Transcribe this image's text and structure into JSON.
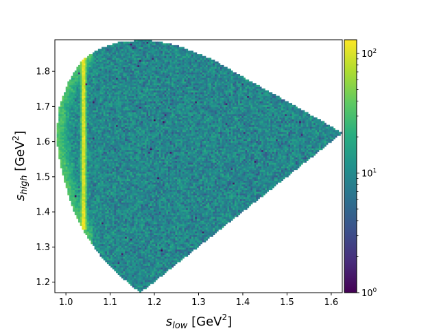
{
  "chart_data": {
    "type": "heatmap",
    "title": "",
    "xlabel": {
      "main": "s",
      "sub": "low",
      "unit_prefix": " [GeV",
      "unit_sup": "2",
      "unit_suffix": "]"
    },
    "ylabel": {
      "main": "s",
      "sub": "high",
      "unit_prefix": " [GeV",
      "unit_sup": "2",
      "unit_suffix": "]"
    },
    "xlim": [
      0.975,
      1.625
    ],
    "ylim": [
      1.17,
      1.89
    ],
    "xticks": [
      1.0,
      1.1,
      1.2,
      1.3,
      1.4,
      1.5,
      1.6
    ],
    "xtick_labels": [
      "1.0",
      "1.1",
      "1.2",
      "1.3",
      "1.4",
      "1.5",
      "1.6"
    ],
    "yticks": [
      1.2,
      1.3,
      1.4,
      1.5,
      1.6,
      1.7,
      1.8
    ],
    "ytick_labels": [
      "1.2",
      "1.3",
      "1.4",
      "1.5",
      "1.6",
      "1.7",
      "1.8"
    ],
    "colormap": "viridis",
    "color_scale": "log",
    "color_range": [
      1,
      130
    ],
    "colorbar_ticks": [
      {
        "value": 1,
        "base": "10",
        "exp": "0"
      },
      {
        "value": 10,
        "base": "10",
        "exp": "1"
      },
      {
        "value": 100,
        "base": "10",
        "exp": "2"
      }
    ],
    "domain_boundary": {
      "vertices": [
        [
          1.168,
          1.17
        ],
        [
          1.12,
          1.22
        ],
        [
          1.075,
          1.28
        ],
        [
          1.04,
          1.345
        ],
        [
          1.015,
          1.41
        ],
        [
          0.998,
          1.48
        ],
        [
          0.985,
          1.55
        ],
        [
          0.978,
          1.62
        ],
        [
          0.985,
          1.7
        ],
        [
          1.005,
          1.77
        ],
        [
          1.035,
          1.83
        ],
        [
          1.075,
          1.865
        ],
        [
          1.125,
          1.885
        ],
        [
          1.185,
          1.89
        ],
        [
          1.25,
          1.875
        ],
        [
          1.33,
          1.835
        ],
        [
          1.42,
          1.77
        ],
        [
          1.5,
          1.715
        ],
        [
          1.57,
          1.665
        ],
        [
          1.625,
          1.625
        ],
        [
          1.168,
          1.17
        ]
      ]
    },
    "features": [
      {
        "type": "vertical_band",
        "x": 1.04,
        "y_range": [
          1.35,
          1.84
        ],
        "peak_count": 130
      },
      {
        "type": "edge_enhancement",
        "edge": "left",
        "count": 25
      }
    ],
    "background_count_range": [
      5,
      15
    ]
  }
}
